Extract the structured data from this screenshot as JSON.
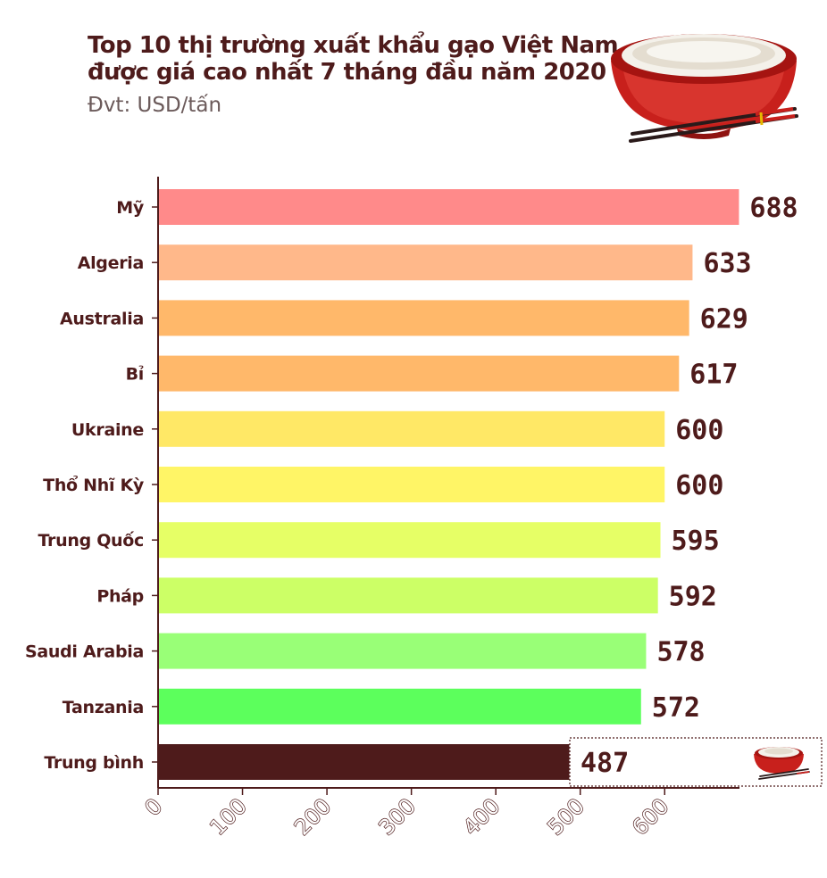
{
  "chart_data": {
    "type": "bar",
    "orientation": "horizontal",
    "title": "Top 10 thị trường xuất khẩu gạo Việt Nam",
    "title_line2": "được giá cao nhất 7 tháng đầu năm 2020",
    "subtitle": "Đvt: USD/tấn",
    "categories": [
      "Mỹ",
      "Algeria",
      "Australia",
      "Bỉ",
      "Ukraine",
      "Thổ Nhĩ Kỳ",
      "Trung Quốc",
      "Pháp",
      "Saudi Arabia",
      "Tanzania",
      "Trung bình"
    ],
    "values": [
      688,
      633,
      629,
      617,
      600,
      600,
      595,
      592,
      578,
      572,
      487
    ],
    "colors": [
      "#ff8a8a",
      "#ffb88a",
      "#ffb86a",
      "#ffb86a",
      "#ffe866",
      "#fff566",
      "#e6ff66",
      "#ccff66",
      "#99ff77",
      "#5cff5c",
      "#4e1b1b"
    ],
    "xticks": [
      "0",
      "100",
      "200",
      "300",
      "400",
      "500",
      "600"
    ],
    "xlim": [
      0,
      690
    ],
    "xlabel": "",
    "ylabel": "",
    "grid": false,
    "legend": "none"
  }
}
